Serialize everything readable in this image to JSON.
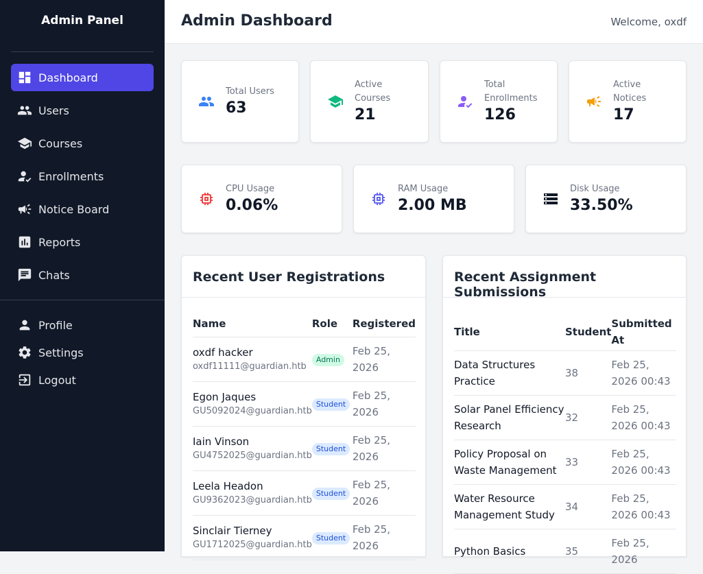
{
  "sidebar": {
    "title": "Admin Panel",
    "items": [
      {
        "label": "Dashboard",
        "icon": "dashboard-icon",
        "active": true
      },
      {
        "label": "Users",
        "icon": "users-icon"
      },
      {
        "label": "Courses",
        "icon": "graduation-cap-icon"
      },
      {
        "label": "Enrollments",
        "icon": "user-check-icon"
      },
      {
        "label": "Notice Board",
        "icon": "megaphone-icon"
      },
      {
        "label": "Reports",
        "icon": "report-chart-icon"
      },
      {
        "label": "Chats",
        "icon": "chat-icon"
      }
    ],
    "bottom_items": [
      {
        "label": "Profile",
        "icon": "person-icon"
      },
      {
        "label": "Settings",
        "icon": "gear-icon"
      },
      {
        "label": "Logout",
        "icon": "logout-icon"
      }
    ]
  },
  "header": {
    "title": "Admin Dashboard",
    "welcome": "Welcome, oxdf"
  },
  "stats": [
    {
      "label": "Total Users",
      "value": "63",
      "icon": "users-icon",
      "color": "#3b82f6"
    },
    {
      "label": "Active Courses",
      "value": "21",
      "icon": "graduation-cap-icon",
      "color": "#10b981"
    },
    {
      "label": "Total Enrollments",
      "value": "126",
      "icon": "user-check-icon",
      "color": "#8b5cf6"
    },
    {
      "label": "Active Notices",
      "value": "17",
      "icon": "megaphone-icon",
      "color": "#f59e0b"
    }
  ],
  "system": [
    {
      "label": "CPU Usage",
      "value": "0.06%",
      "icon": "chip-icon",
      "color": "#ef4444"
    },
    {
      "label": "RAM Usage",
      "value": "2.00 MB",
      "icon": "memory-icon",
      "color": "#6366f1"
    },
    {
      "label": "Disk Usage",
      "value": "33.50%",
      "icon": "storage-icon",
      "color": "#111827"
    }
  ],
  "registrations": {
    "title": "Recent User Registrations",
    "columns": [
      "Name",
      "Role",
      "Registered"
    ],
    "rows": [
      {
        "name": "oxdf hacker",
        "email": "oxdf11111@guardian.htb",
        "role": "Admin",
        "date": "Feb 25, 2026"
      },
      {
        "name": "Egon Jaques",
        "email": "GU5092024@guardian.htb",
        "role": "Student",
        "date": "Feb 25, 2026"
      },
      {
        "name": "Iain Vinson",
        "email": "GU4752025@guardian.htb",
        "role": "Student",
        "date": "Feb 25, 2026"
      },
      {
        "name": "Leela Headon",
        "email": "GU9362023@guardian.htb",
        "role": "Student",
        "date": "Feb 25, 2026"
      },
      {
        "name": "Sinclair Tierney",
        "email": "GU1712025@guardian.htb",
        "role": "Student",
        "date": "Feb 25, 2026"
      }
    ]
  },
  "submissions": {
    "title": "Recent Assignment Submissions",
    "columns": [
      "Title",
      "Student",
      "Submitted At"
    ],
    "rows": [
      {
        "title": "Data Structures Practice",
        "student": "38",
        "submitted": "Feb 25, 2026 00:43"
      },
      {
        "title": "Solar Panel Efficiency Research",
        "student": "32",
        "submitted": "Feb 25, 2026 00:43"
      },
      {
        "title": "Policy Proposal on Waste Management",
        "student": "33",
        "submitted": "Feb 25, 2026 00:43"
      },
      {
        "title": "Water Resource Management Study",
        "student": "34",
        "submitted": "Feb 25, 2026 00:43"
      },
      {
        "title": "Python Basics",
        "student": "35",
        "submitted": "Feb 25, 2026"
      }
    ]
  }
}
